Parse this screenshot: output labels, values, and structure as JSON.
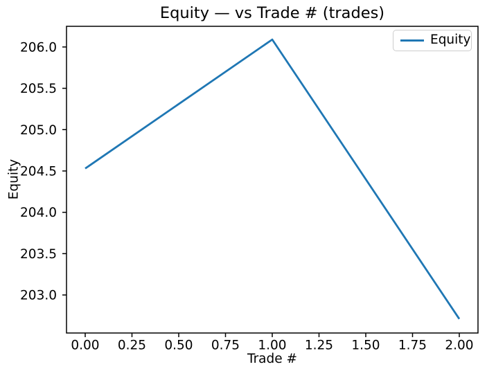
{
  "chart_data": {
    "type": "line",
    "title": "Equity — vs Trade # (trades)",
    "xlabel": "Trade #",
    "ylabel": "Equity",
    "x": [
      0,
      1,
      2
    ],
    "series": [
      {
        "name": "Equity",
        "color": "#1f77b4",
        "values": [
          204.53,
          206.09,
          202.71
        ]
      }
    ],
    "xlim": [
      -0.1,
      2.1
    ],
    "ylim": [
      202.54,
      206.25
    ],
    "xticks": [
      {
        "value": 0.0,
        "label": "0.00"
      },
      {
        "value": 0.25,
        "label": "0.25"
      },
      {
        "value": 0.5,
        "label": "0.50"
      },
      {
        "value": 0.75,
        "label": "0.75"
      },
      {
        "value": 1.0,
        "label": "1.00"
      },
      {
        "value": 1.25,
        "label": "1.25"
      },
      {
        "value": 1.5,
        "label": "1.50"
      },
      {
        "value": 1.75,
        "label": "1.75"
      },
      {
        "value": 2.0,
        "label": "2.00"
      }
    ],
    "yticks": [
      {
        "value": 203.0,
        "label": "203.0"
      },
      {
        "value": 203.5,
        "label": "203.5"
      },
      {
        "value": 204.0,
        "label": "204.0"
      },
      {
        "value": 204.5,
        "label": "204.5"
      },
      {
        "value": 205.0,
        "label": "205.0"
      },
      {
        "value": 205.5,
        "label": "205.5"
      },
      {
        "value": 206.0,
        "label": "206.0"
      }
    ],
    "grid": false,
    "legend": {
      "position": "upper right"
    },
    "colors": {
      "spine": "#000000",
      "background": "#ffffff"
    }
  }
}
